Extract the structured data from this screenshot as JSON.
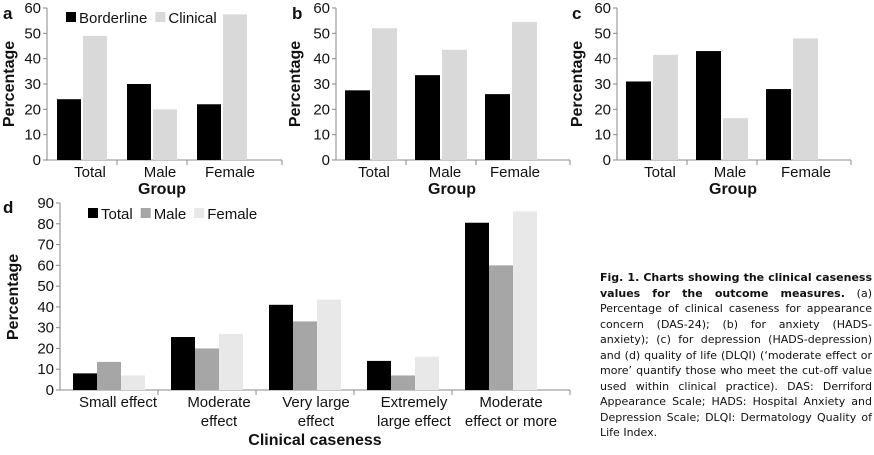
{
  "chart_data": [
    {
      "panel": "a",
      "type": "bar",
      "categories": [
        "Total",
        "Male",
        "Female"
      ],
      "series": [
        {
          "name": "Borderline",
          "values": [
            24,
            30,
            22
          ],
          "color": "#000000"
        },
        {
          "name": "Clinical",
          "values": [
            49,
            20,
            57.5
          ],
          "color": "#d9d9d9"
        }
      ],
      "xlabel": "Group",
      "ylabel": "Percentage",
      "ylim": [
        0,
        60
      ],
      "yticks": [
        0,
        10,
        20,
        30,
        40,
        50,
        60
      ],
      "grid": false,
      "legend": "top-left"
    },
    {
      "panel": "b",
      "type": "bar",
      "categories": [
        "Total",
        "Male",
        "Female"
      ],
      "series": [
        {
          "values": [
            27.5,
            33.5,
            26
          ],
          "color": "#000000"
        },
        {
          "values": [
            52,
            43.5,
            54.5
          ],
          "color": "#d9d9d9"
        }
      ],
      "xlabel": "Group",
      "ylabel": "Percentage",
      "ylim": [
        0,
        60
      ],
      "yticks": [
        0,
        10,
        20,
        30,
        40,
        50,
        60
      ],
      "grid": false
    },
    {
      "panel": "c",
      "type": "bar",
      "categories": [
        "Total",
        "Male",
        "Female"
      ],
      "series": [
        {
          "values": [
            31,
            43,
            28
          ],
          "color": "#000000"
        },
        {
          "values": [
            41.5,
            16.5,
            48
          ],
          "color": "#d9d9d9"
        }
      ],
      "xlabel": "Group",
      "ylabel": "Percentage",
      "ylim": [
        0,
        60
      ],
      "yticks": [
        0,
        10,
        20,
        30,
        40,
        50,
        60
      ],
      "grid": false
    },
    {
      "panel": "d",
      "type": "bar",
      "categories": [
        [
          "Small effect"
        ],
        [
          "Moderate",
          "effect"
        ],
        [
          "Very large",
          "effect"
        ],
        [
          "Extremely",
          "large effect"
        ],
        [
          "Moderate",
          "effect or more"
        ]
      ],
      "series": [
        {
          "name": "Total",
          "values": [
            8,
            25.5,
            41,
            14,
            80.5
          ],
          "color": "#000000"
        },
        {
          "name": "Male",
          "values": [
            13.5,
            20,
            33,
            7,
            60
          ],
          "color": "#a6a6a6"
        },
        {
          "name": "Female",
          "values": [
            7,
            27,
            43.5,
            16,
            86
          ],
          "color": "#e8e8e8"
        }
      ],
      "xlabel": "Clinical caseness",
      "ylabel": "Percentage",
      "ylim": [
        0,
        90
      ],
      "yticks": [
        0,
        10,
        20,
        30,
        40,
        50,
        60,
        70,
        80,
        90
      ],
      "grid": false,
      "legend": "top-left"
    }
  ],
  "caption": {
    "lead": "Fig. 1. Charts showing the clinical caseness values for the outcome measures.",
    "body": "(a) Percentage of clinical caseness for appearance concern (DAS-24); (b) for anxiety (HADS-anxiety); (c) for depression (HADS-depression) and (d) quality of life (DLQI) (‘moderate effect or more’ quantify those who meet the cut-off value used within clinical practice). DAS: Derriford Appearance Scale; HADS: Hospital Anxiety and Depression Scale; DLQI: Dermatology Quality of Life Index."
  }
}
